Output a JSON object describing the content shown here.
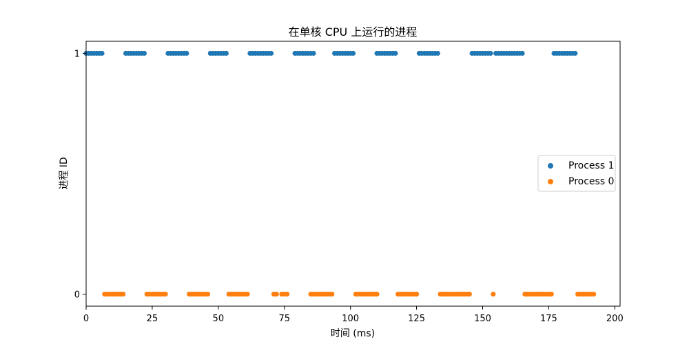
{
  "chart_data": {
    "type": "scatter",
    "title": "在单核 CPU 上运行的进程",
    "xlabel": "时间 (ms)",
    "ylabel": "进程 ID",
    "xlim": [
      0,
      202
    ],
    "ylim": [
      -0.05,
      1.05
    ],
    "xticks": [
      0,
      25,
      50,
      75,
      100,
      125,
      150,
      175,
      200
    ],
    "yticks": [
      0,
      1
    ],
    "grid": false,
    "legend_position": "center-right",
    "series": [
      {
        "name": "Process 1",
        "color": "#1f77b4",
        "y": 1,
        "x": [
          0,
          1,
          2,
          3,
          4,
          5,
          6,
          15,
          16,
          17,
          18,
          19,
          20,
          21,
          22,
          31,
          32,
          33,
          34,
          35,
          36,
          37,
          38,
          47,
          48,
          49,
          50,
          51,
          52,
          53,
          62,
          63,
          64,
          65,
          66,
          67,
          68,
          69,
          70,
          79,
          80,
          81,
          82,
          83,
          84,
          85,
          86,
          94,
          95,
          96,
          97,
          98,
          99,
          100,
          101,
          110,
          111,
          112,
          113,
          114,
          115,
          116,
          117,
          126,
          127,
          128,
          129,
          130,
          131,
          132,
          133,
          146,
          147,
          148,
          149,
          150,
          151,
          152,
          153,
          155,
          156,
          157,
          158,
          159,
          160,
          161,
          162,
          163,
          164,
          165,
          177,
          178,
          179,
          180,
          181,
          182,
          183,
          184,
          185
        ]
      },
      {
        "name": "Process 0",
        "color": "#ff7f0e",
        "y": 0,
        "x": [
          7,
          8,
          9,
          10,
          11,
          12,
          13,
          14,
          23,
          24,
          25,
          26,
          27,
          28,
          29,
          30,
          39,
          40,
          41,
          42,
          43,
          44,
          45,
          46,
          54,
          55,
          56,
          57,
          58,
          59,
          60,
          61,
          71,
          72,
          74,
          75,
          76,
          85,
          86,
          87,
          88,
          89,
          90,
          91,
          92,
          93,
          102,
          103,
          104,
          105,
          106,
          107,
          108,
          109,
          110,
          118,
          119,
          120,
          121,
          122,
          123,
          124,
          125,
          134,
          135,
          136,
          137,
          138,
          139,
          140,
          141,
          142,
          143,
          144,
          145,
          154,
          166,
          167,
          168,
          169,
          170,
          171,
          172,
          173,
          174,
          175,
          176,
          186,
          187,
          188,
          189,
          190,
          191,
          192
        ]
      }
    ]
  }
}
